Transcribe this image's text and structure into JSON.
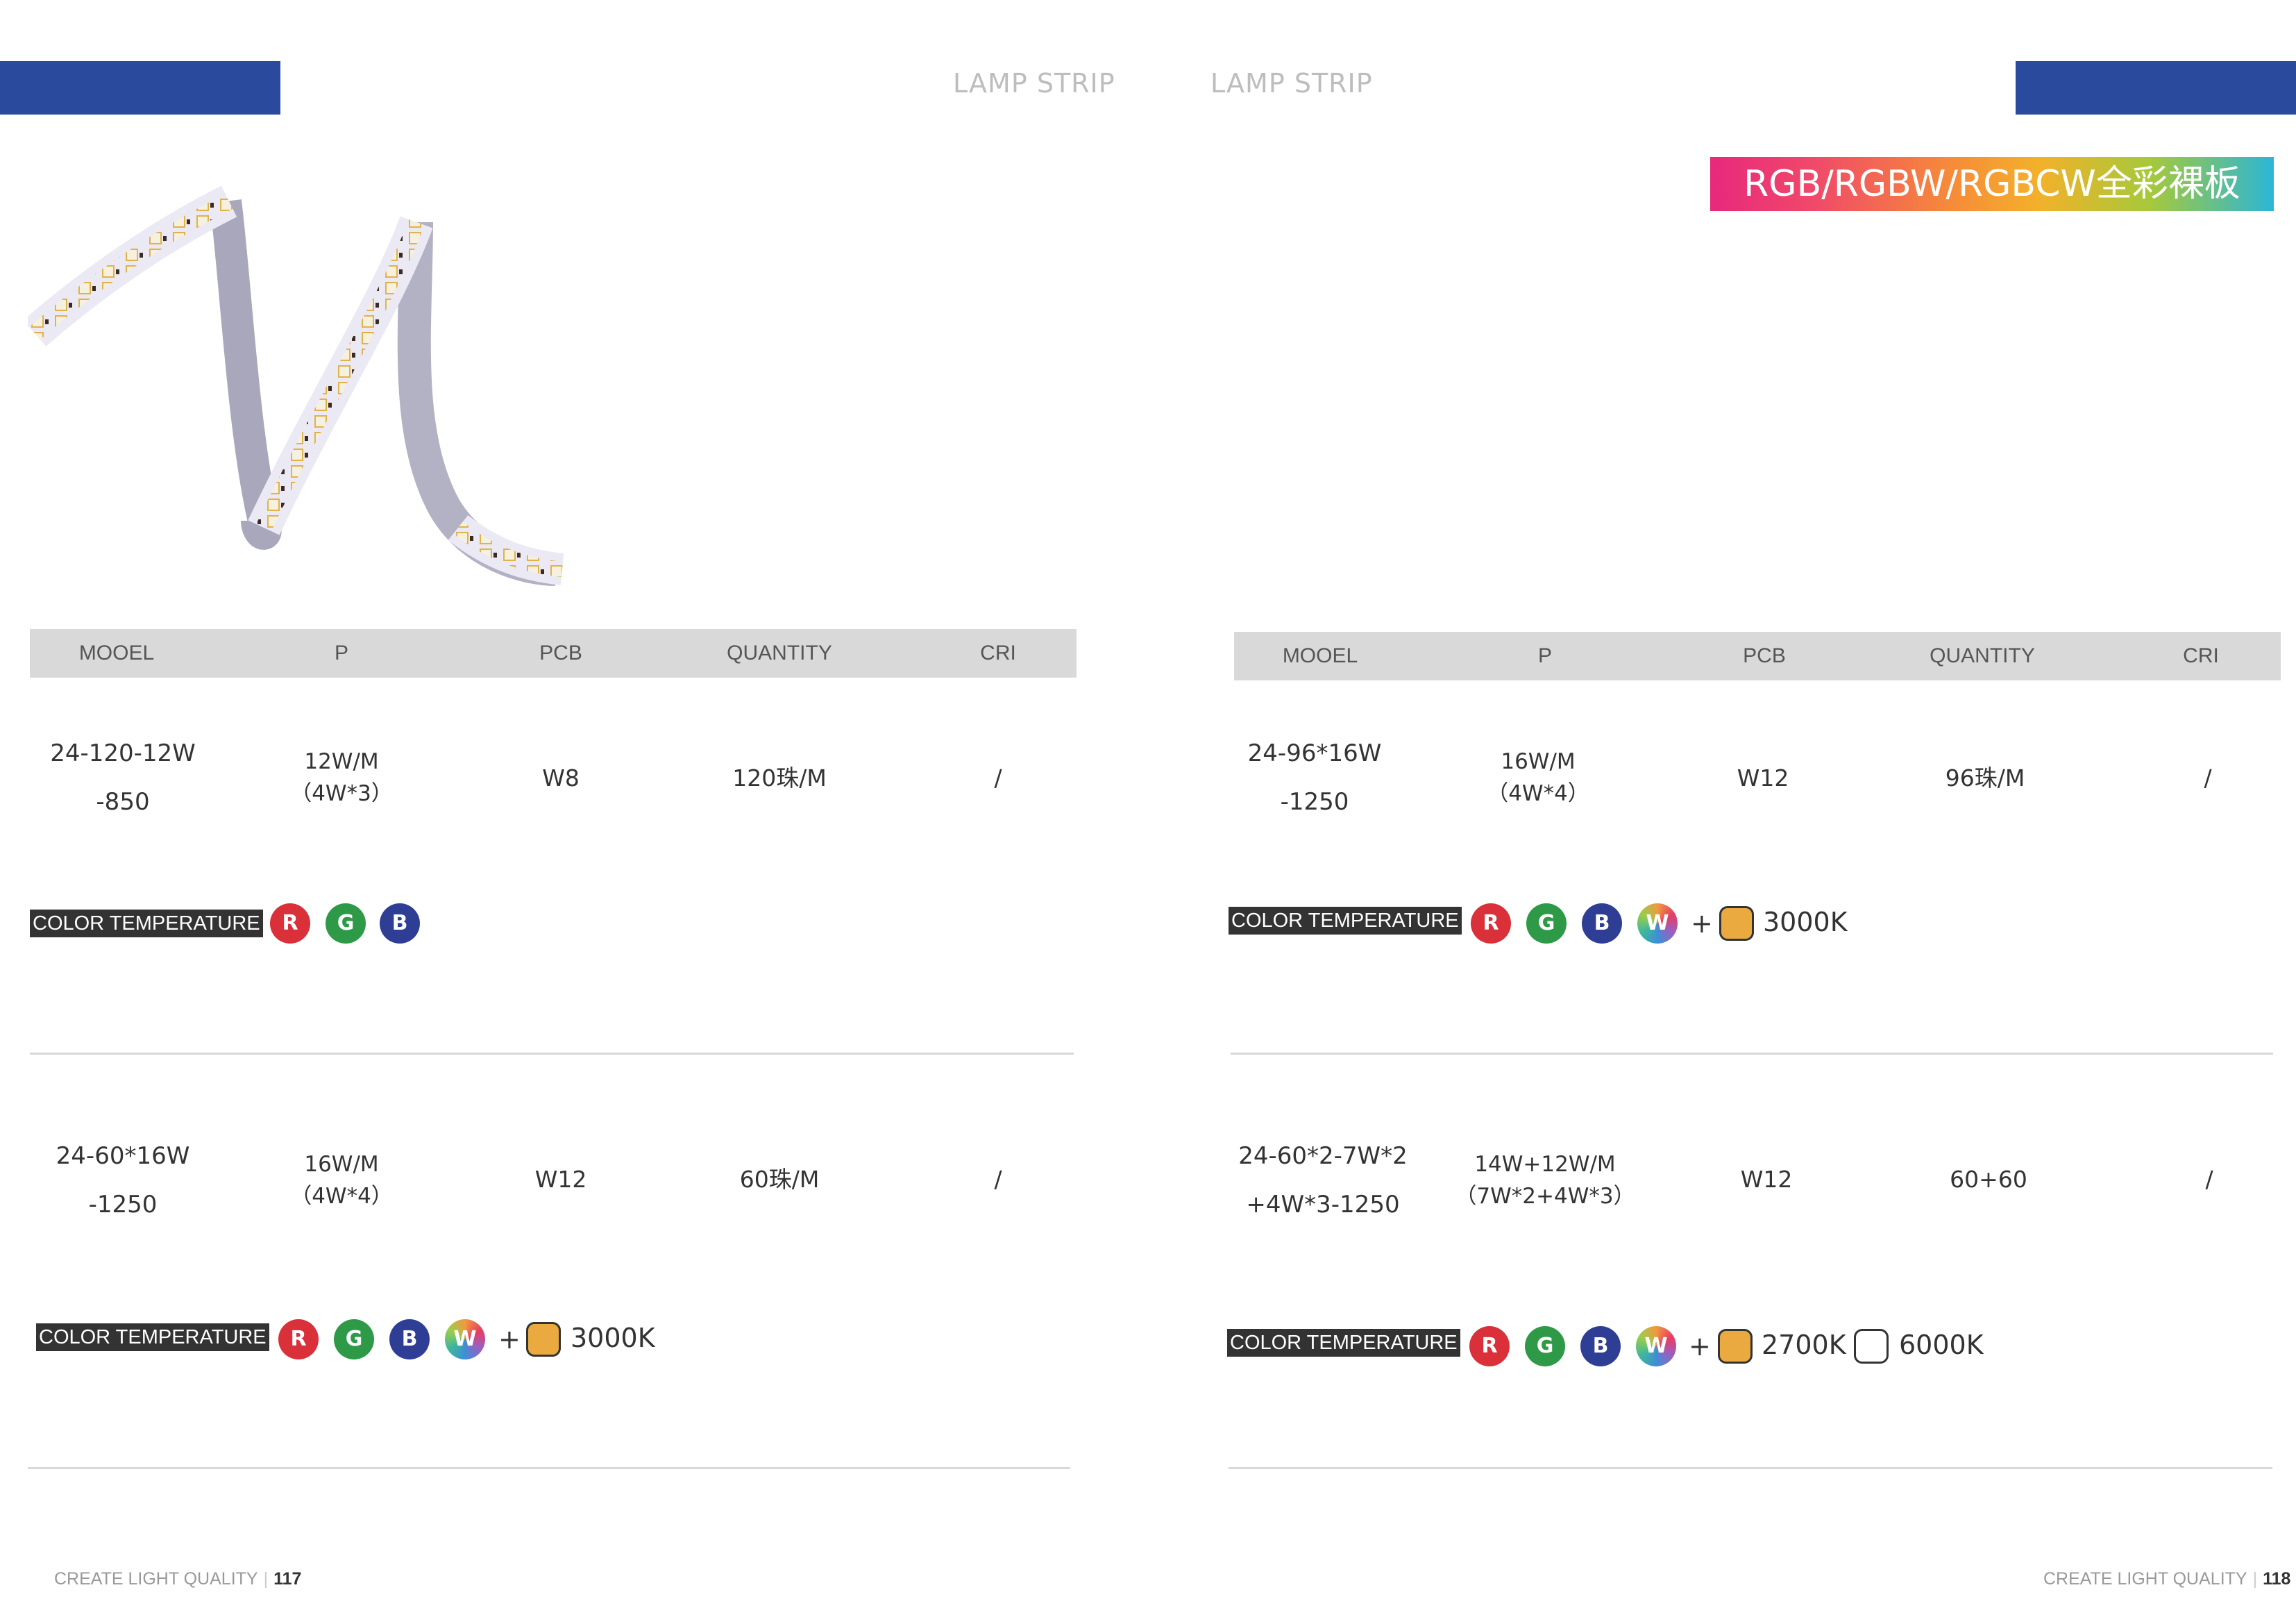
{
  "header": {
    "title_left": "LAMP STRIP",
    "title_right": "LAMP STRIP",
    "brand_color": "#2a4a9e"
  },
  "series_banner": "RGB/RGBW/RGBCW全彩裸板",
  "product_image": "led-strip-photo",
  "columns": [
    "MOOEL",
    "P",
    "PCB",
    "QUANTITY",
    "CRI"
  ],
  "color_temperature_label": "COLOR TEMPERATURE",
  "products": [
    {
      "model_line1": "24-120-12W",
      "model_line2": "-850",
      "power_line1": "12W/M",
      "power_line2": "（4W*3）",
      "pcb": "W8",
      "quantity": "120珠/M",
      "cri": "/",
      "colors": [
        "R",
        "G",
        "B"
      ]
    },
    {
      "model_line1": "24-60*16W",
      "model_line2": "-1250",
      "power_line1": "16W/M",
      "power_line2": "（4W*4）",
      "pcb": "W12",
      "quantity": "60珠/M",
      "cri": "/",
      "colors": [
        "R",
        "G",
        "B",
        "W"
      ],
      "plus": "+",
      "temperatures": [
        "3000K"
      ]
    },
    {
      "model_line1": "24-96*16W",
      "model_line2": "-1250",
      "power_line1": "16W/M",
      "power_line2": "（4W*4）",
      "pcb": "W12",
      "quantity": "96珠/M",
      "cri": "/",
      "colors": [
        "R",
        "G",
        "B",
        "W"
      ],
      "plus": "+",
      "temperatures": [
        "3000K"
      ]
    },
    {
      "model_line1": "24-60*2-7W*2",
      "model_line2": "+4W*3-1250",
      "power_line1": "14W+12W/M",
      "power_line2": "（7W*2+4W*3）",
      "pcb": "W12",
      "quantity": "60+60",
      "cri": "/",
      "colors": [
        "R",
        "G",
        "B",
        "W"
      ],
      "plus": "+",
      "temperatures": [
        "2700K",
        "6000K"
      ]
    }
  ],
  "dot_colors": {
    "R": "#d9303a",
    "G": "#2e9a48",
    "B": "#2e3e95"
  },
  "swatch_colors": {
    "warm": "#eaaa3f",
    "cold": "#ffffff"
  },
  "footer": {
    "left_text": "CREATE LIGHT QUALITY",
    "left_page": "117",
    "right_text": "CREATE LIGHT QUALITY",
    "right_page": "118"
  }
}
